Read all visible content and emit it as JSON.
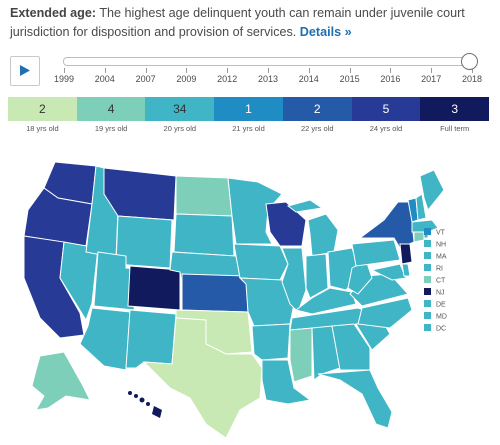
{
  "header": {
    "lead": "Extended age:",
    "text": " The highest age delinquent youth can remain under juvenile court jurisdiction for disposition and provision of services.",
    "link": "Details »"
  },
  "player": {
    "play_icon": "play-icon"
  },
  "timeline": {
    "years": [
      "1999",
      "2004",
      "2007",
      "2009",
      "2012",
      "2013",
      "2014",
      "2015",
      "2016",
      "2017",
      "2018"
    ],
    "selected": "2018"
  },
  "legend": {
    "items": [
      {
        "count": "2",
        "label": "18 yrs old",
        "color": "#c8e8b4"
      },
      {
        "count": "4",
        "label": "19 yrs old",
        "color": "#7dcfba"
      },
      {
        "count": "34",
        "label": "20 yrs old",
        "color": "#3fb5c6"
      },
      {
        "count": "1",
        "label": "21 yrs old",
        "color": "#1f8dc4"
      },
      {
        "count": "2",
        "label": "22 yrs old",
        "color": "#255aa8"
      },
      {
        "count": "5",
        "label": "24 yrs old",
        "color": "#263a96"
      },
      {
        "count": "3",
        "label": "Full term",
        "color": "#101a5c"
      }
    ]
  },
  "northeast": [
    {
      "abbr": "VT",
      "color": "#1f8dc4"
    },
    {
      "abbr": "NH",
      "color": "#3fb5c6"
    },
    {
      "abbr": "MA",
      "color": "#3fb5c6"
    },
    {
      "abbr": "RI",
      "color": "#3fb5c6"
    },
    {
      "abbr": "CT",
      "color": "#7dcfba"
    },
    {
      "abbr": "NJ",
      "color": "#101a5c"
    },
    {
      "abbr": "DE",
      "color": "#3fb5c6"
    },
    {
      "abbr": "MD",
      "color": "#3fb5c6"
    },
    {
      "abbr": "DC",
      "color": "#3fb5c6"
    }
  ]
}
